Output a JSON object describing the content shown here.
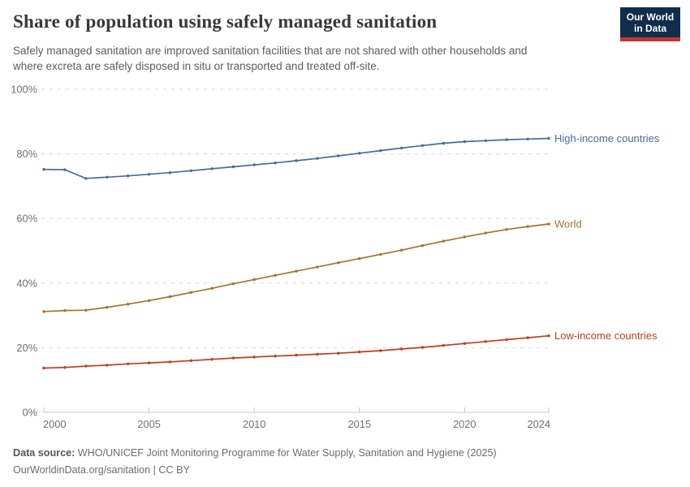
{
  "header": {
    "title": "Share of population using safely managed sanitation",
    "subtitle_line1": "Safely managed sanitation are improved sanitation facilities that are not shared with other households and",
    "subtitle_line2": "where excreta are safely disposed in situ or transported and treated off-site.",
    "logo": {
      "line1": "Our World",
      "line2": "in Data",
      "bg_color": "#102d4c",
      "accent_color": "#c33434"
    }
  },
  "footer": {
    "source_label": "Data source:",
    "source_text": " WHO/UNICEF Joint Monitoring Programme for Water Supply, Sanitation and Hygiene (2025)",
    "license_text": "OurWorldinData.org/sanitation | CC BY"
  },
  "chart_data": {
    "type": "line",
    "title": "Share of population using safely managed sanitation",
    "xlabel": "",
    "ylabel": "",
    "ylim": [
      0,
      100
    ],
    "yticks": [
      0,
      20,
      40,
      60,
      80,
      100
    ],
    "ytick_suffix": "%",
    "xticks": [
      2000,
      2005,
      2010,
      2015,
      2020,
      2024
    ],
    "grid": "horizontal-dashed",
    "legend_position": "right-of-line-end",
    "grid_color": "#dcdcdc",
    "axis_color": "#c8c8c8",
    "x": [
      2000,
      2001,
      2002,
      2003,
      2004,
      2005,
      2006,
      2007,
      2008,
      2009,
      2010,
      2011,
      2012,
      2013,
      2014,
      2015,
      2016,
      2017,
      2018,
      2019,
      2020,
      2021,
      2022,
      2023,
      2024
    ],
    "series": [
      {
        "name": "High-income countries",
        "color": "#4c6a9c",
        "values": [
          75.2,
          75.1,
          72.4,
          72.8,
          73.2,
          73.7,
          74.2,
          74.8,
          75.4,
          76.0,
          76.6,
          77.2,
          77.9,
          78.6,
          79.4,
          80.2,
          81.0,
          81.8,
          82.6,
          83.3,
          83.8,
          84.1,
          84.4,
          84.6,
          84.8
        ]
      },
      {
        "name": "World",
        "color": "#a5732f",
        "values": [
          31.2,
          31.5,
          31.6,
          32.5,
          33.5,
          34.6,
          35.8,
          37.1,
          38.4,
          39.8,
          41.1,
          42.4,
          43.7,
          45.0,
          46.3,
          47.6,
          48.9,
          50.2,
          51.6,
          53.0,
          54.3,
          55.5,
          56.6,
          57.5,
          58.3
        ]
      },
      {
        "name": "Low-income countries",
        "color": "#c13d22",
        "values": [
          13.7,
          13.9,
          14.3,
          14.6,
          15.0,
          15.3,
          15.6,
          16.0,
          16.4,
          16.8,
          17.1,
          17.4,
          17.7,
          18.0,
          18.3,
          18.7,
          19.1,
          19.6,
          20.1,
          20.7,
          21.3,
          21.9,
          22.5,
          23.1,
          23.7
        ]
      }
    ]
  }
}
